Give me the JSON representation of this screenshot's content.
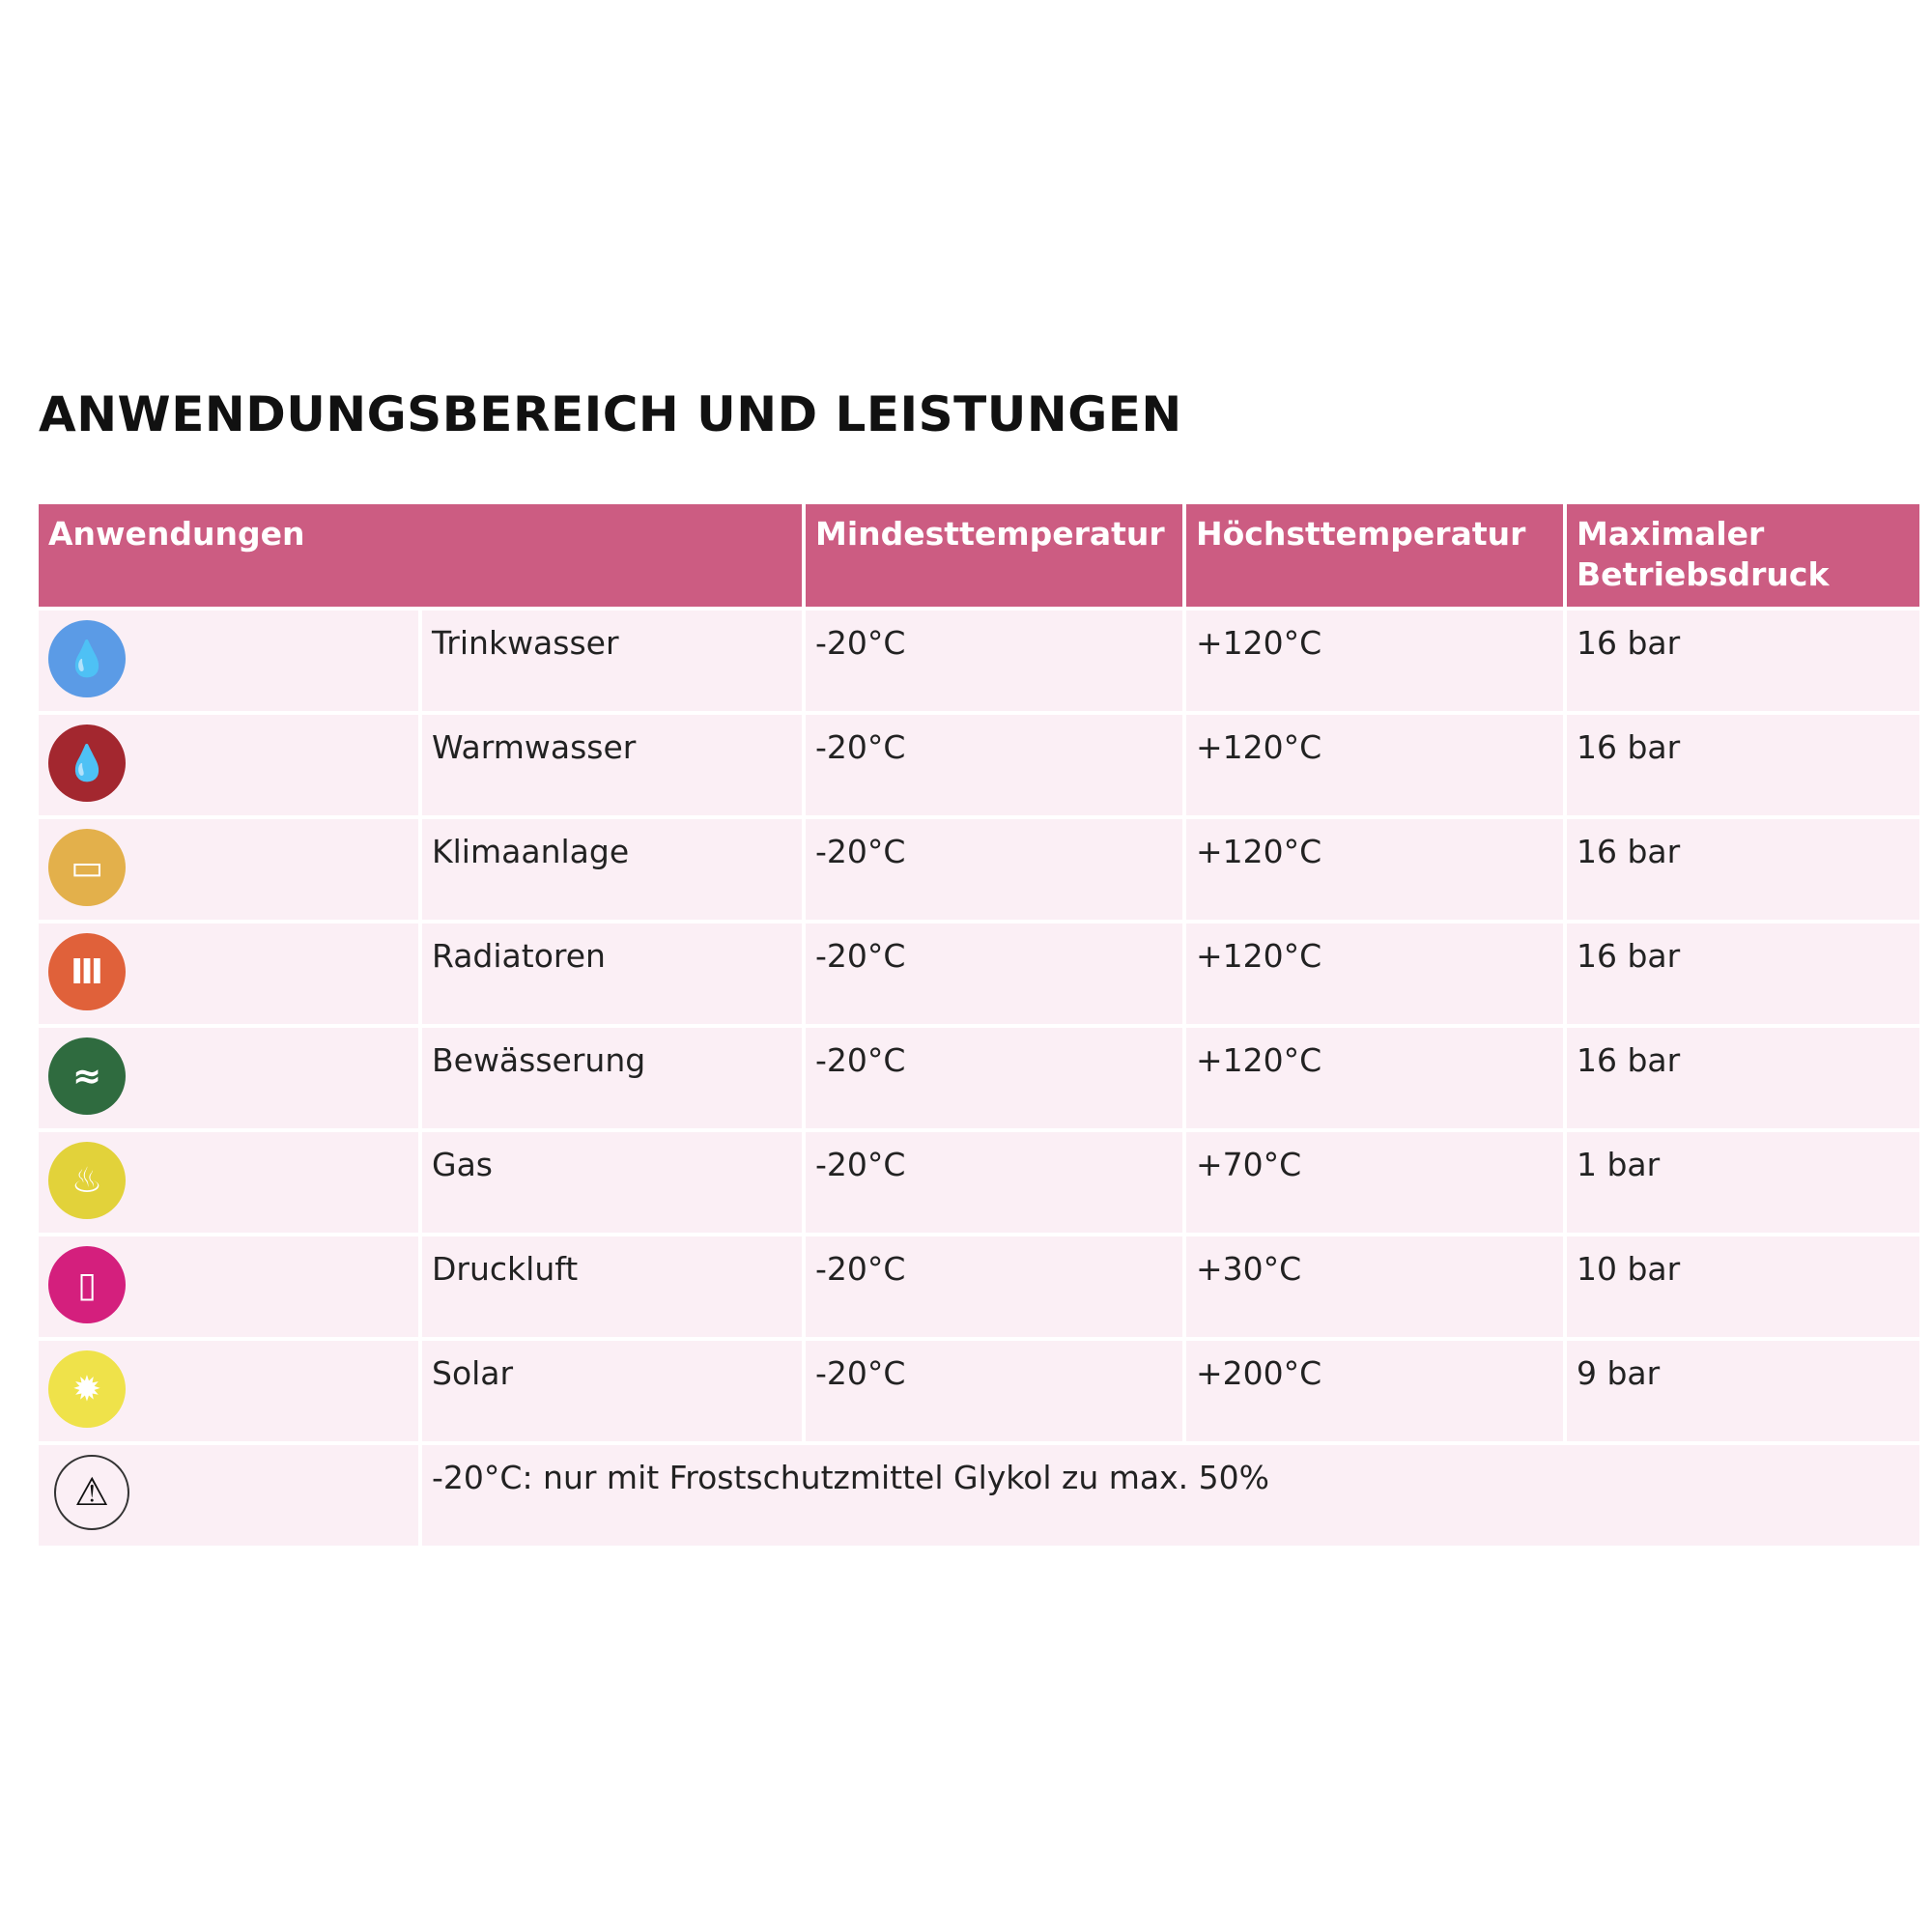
{
  "title": "ANWENDUNGSBEREICH UND LEISTUNGEN",
  "headers": [
    "Anwendungen",
    "Mindesttemperatur",
    "Höchsttemperatur",
    "Maximaler Betriebsdruck"
  ],
  "rows": [
    {
      "icon": "water-drop-icon",
      "color": "#5b9be6",
      "name": "Trinkwasser",
      "min": "-20°C",
      "max": "+120°C",
      "pressure": "16 bar"
    },
    {
      "icon": "hot-water-drop-icon",
      "color": "#a3272f",
      "name": "Warmwasser",
      "min": "-20°C",
      "max": "+120°C",
      "pressure": "16 bar"
    },
    {
      "icon": "air-conditioner-icon",
      "color": "#e3b04b",
      "name": "Klimaanlage",
      "min": "-20°C",
      "max": "+120°C",
      "pressure": "16 bar"
    },
    {
      "icon": "radiator-icon",
      "color": "#e0613a",
      "name": "Radiatoren",
      "min": "-20°C",
      "max": "+120°C",
      "pressure": "16 bar"
    },
    {
      "icon": "irrigation-icon",
      "color": "#2f6b3f",
      "name": "Bewässerung",
      "min": "-20°C",
      "max": "+120°C",
      "pressure": "16 bar"
    },
    {
      "icon": "gas-flame-icon",
      "color": "#e2d23a",
      "name": "Gas",
      "min": "-20°C",
      "max": "+70°C",
      "pressure": "1 bar"
    },
    {
      "icon": "compressed-air-icon",
      "color": "#d41f7d",
      "name": "Druckluft",
      "min": "-20°C",
      "max": "+30°C",
      "pressure": "10 bar"
    },
    {
      "icon": "sun-icon",
      "color": "#efe24a",
      "name": "Solar",
      "min": "-20°C",
      "max": "+200°C",
      "pressure": "9 bar"
    }
  ],
  "note": {
    "icon": "warning-icon",
    "text": "-20°C: nur mit Frostschutzmittel Glykol zu max. 50%"
  }
}
